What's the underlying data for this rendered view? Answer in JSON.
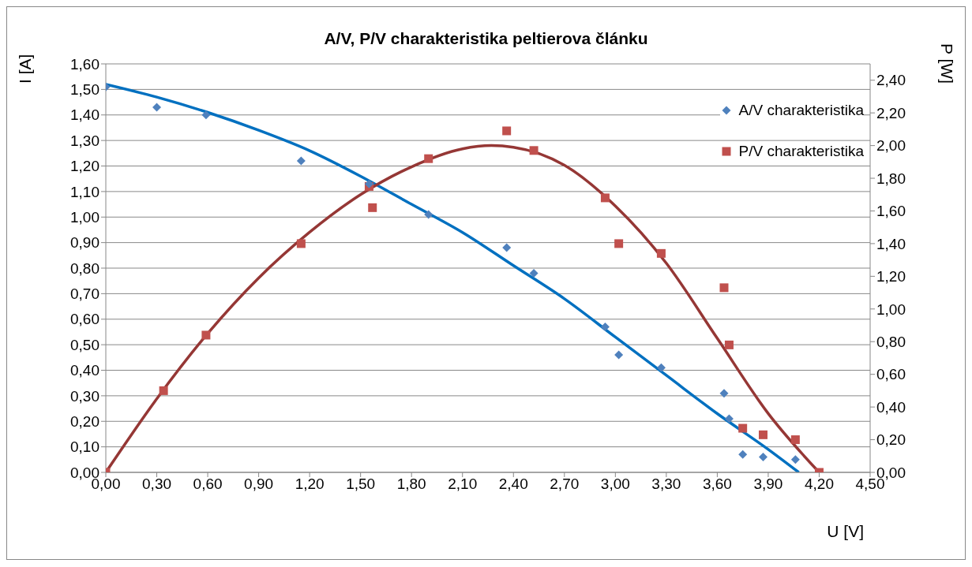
{
  "chart_data": {
    "type": "scatter",
    "title": "A/V, P/V charakteristika peltierova článku",
    "xlabel": "U [V]",
    "ylabel": "I [A]",
    "y2label": "P [W]",
    "xlim": [
      0,
      4.5
    ],
    "xticks": [
      {
        "value": 0,
        "label": "0,00"
      },
      {
        "value": 0.3,
        "label": "0,30"
      },
      {
        "value": 0.6,
        "label": "0,60"
      },
      {
        "value": 0.9,
        "label": "0,90"
      },
      {
        "value": 1.2,
        "label": "1,20"
      },
      {
        "value": 1.5,
        "label": "1,50"
      },
      {
        "value": 1.8,
        "label": "1,80"
      },
      {
        "value": 2.1,
        "label": "2,10"
      },
      {
        "value": 2.4,
        "label": "2,40"
      },
      {
        "value": 2.7,
        "label": "2,70"
      },
      {
        "value": 3.0,
        "label": "3,00"
      },
      {
        "value": 3.3,
        "label": "3,30"
      },
      {
        "value": 3.6,
        "label": "3,60"
      },
      {
        "value": 3.9,
        "label": "3,90"
      },
      {
        "value": 4.2,
        "label": "4,20"
      },
      {
        "value": 4.5,
        "label": "4,50"
      }
    ],
    "ylim": [
      0,
      1.6
    ],
    "yticks": [
      {
        "value": 0,
        "label": "0,00"
      },
      {
        "value": 0.1,
        "label": "0,10"
      },
      {
        "value": 0.2,
        "label": "0,20"
      },
      {
        "value": 0.3,
        "label": "0,30"
      },
      {
        "value": 0.4,
        "label": "0,40"
      },
      {
        "value": 0.5,
        "label": "0,50"
      },
      {
        "value": 0.6,
        "label": "0,60"
      },
      {
        "value": 0.7,
        "label": "0,70"
      },
      {
        "value": 0.8,
        "label": "0,80"
      },
      {
        "value": 0.9,
        "label": "0,90"
      },
      {
        "value": 1.0,
        "label": "1,00"
      },
      {
        "value": 1.1,
        "label": "1,10"
      },
      {
        "value": 1.2,
        "label": "1,20"
      },
      {
        "value": 1.3,
        "label": "1,30"
      },
      {
        "value": 1.4,
        "label": "1,40"
      },
      {
        "value": 1.5,
        "label": "1,50"
      },
      {
        "value": 1.6,
        "label": "1,60"
      }
    ],
    "y2lim": [
      0,
      2.5
    ],
    "y2ticks": [
      {
        "value": 0,
        "label": "0,00"
      },
      {
        "value": 0.2,
        "label": "0,20"
      },
      {
        "value": 0.4,
        "label": "0,40"
      },
      {
        "value": 0.6,
        "label": "0,60"
      },
      {
        "value": 0.8,
        "label": "0,80"
      },
      {
        "value": 1.0,
        "label": "1,00"
      },
      {
        "value": 1.2,
        "label": "1,20"
      },
      {
        "value": 1.4,
        "label": "1,40"
      },
      {
        "value": 1.6,
        "label": "1,60"
      },
      {
        "value": 1.8,
        "label": "1,80"
      },
      {
        "value": 2.0,
        "label": "2,00"
      },
      {
        "value": 2.2,
        "label": "2,20"
      },
      {
        "value": 2.4,
        "label": "2,40"
      }
    ],
    "grid": "y",
    "legend": "top right",
    "series": [
      {
        "name": "A/V charakteristika",
        "marker": "diamond",
        "color": "#4f81bd",
        "x": [
          0,
          0.3,
          0.59,
          1.15,
          1.55,
          1.9,
          2.36,
          2.52,
          2.94,
          3.02,
          3.27,
          3.64,
          3.67,
          3.75,
          3.87,
          4.06
        ],
        "values": [
          1.51,
          1.43,
          1.4,
          1.22,
          1.13,
          1.01,
          0.88,
          0.78,
          0.57,
          0.46,
          0.41,
          0.31,
          0.21,
          0.07,
          0.06,
          0.05
        ]
      },
      {
        "name": "P/V charakteristika",
        "marker": "square",
        "axis": "y2",
        "color": "#c0504d",
        "x": [
          0,
          0.34,
          0.59,
          1.15,
          1.55,
          1.57,
          1.9,
          2.36,
          2.52,
          2.94,
          3.02,
          3.27,
          3.64,
          3.67,
          3.75,
          3.87,
          4.06,
          4.2
        ],
        "values": [
          0,
          0.5,
          0.84,
          1.4,
          1.75,
          1.62,
          1.92,
          2.09,
          1.97,
          1.68,
          1.4,
          1.34,
          1.13,
          0.78,
          0.27,
          0.23,
          0.2,
          0
        ]
      },
      {
        "type": "line",
        "marker": "none",
        "line_style": "solid",
        "color": "#0070c0",
        "x": [
          0,
          0.3,
          0.6,
          0.9,
          1.2,
          1.5,
          1.8,
          2.1,
          2.4,
          2.7,
          3.0,
          3.3,
          3.6,
          3.9,
          4.08
        ],
        "values": [
          1.52,
          1.47,
          1.41,
          1.34,
          1.26,
          1.16,
          1.05,
          0.94,
          0.81,
          0.68,
          0.53,
          0.38,
          0.23,
          0.09,
          0
        ]
      },
      {
        "type": "line",
        "marker": "none",
        "line_style": "solid",
        "axis": "y2",
        "color": "#953735",
        "x": [
          0,
          0.3,
          0.6,
          0.9,
          1.2,
          1.5,
          1.8,
          2.1,
          2.27,
          2.4,
          2.7,
          3.0,
          3.3,
          3.6,
          3.9,
          4.2
        ],
        "values": [
          0,
          0.45,
          0.85,
          1.19,
          1.47,
          1.7,
          1.87,
          1.98,
          2.0,
          1.99,
          1.88,
          1.63,
          1.28,
          0.82,
          0.36,
          0
        ]
      }
    ]
  }
}
